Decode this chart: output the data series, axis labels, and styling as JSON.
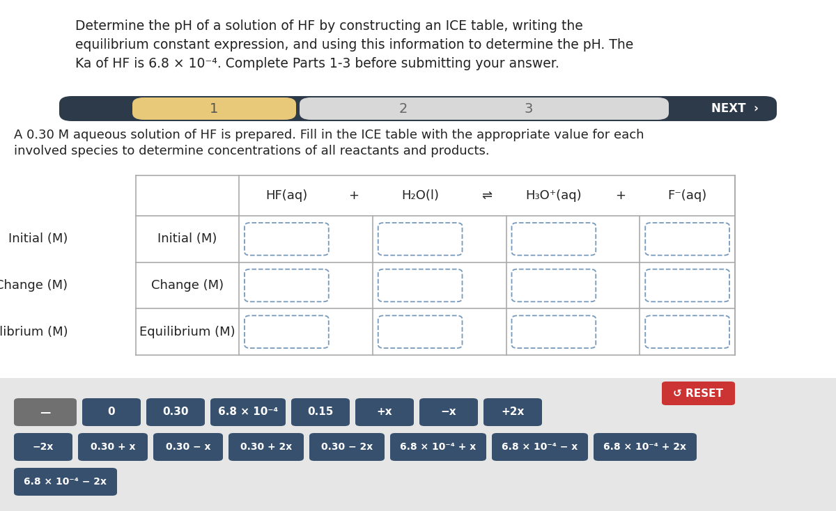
{
  "bg_color": "#f0f0f0",
  "white": "#ffffff",
  "dark_navy": "#2d3a4a",
  "medium_navy": "#37506e",
  "gold": "#e8c97a",
  "light_gray_tab": "#d0d0d0",
  "red_reset": "#cc3333",
  "gray_button": "#707070",
  "title_text_line1": "Determine the pH of a solution of HF by constructing an ICE table, writing the",
  "title_text_line2": "equilibrium constant expression, and using this information to determine the pH. The",
  "title_text_line3": "Ka of HF is 6.8 × 10⁻⁴. Complete Parts 1-3 before submitting your answer.",
  "description_line1": "A 0.30 M aqueous solution of HF is prepared. Fill in the ICE table with the appropriate value for each",
  "description_line2": "involved species to determine concentrations of all reactants and products.",
  "row_labels": [
    "Initial (M)",
    "Change (M)",
    "Equilibrium (M)"
  ],
  "col_headers": [
    "HF(aq)",
    "+",
    "H₂O(l)",
    "⇌",
    "H₃O⁺(aq)",
    "+",
    "F⁻(aq)"
  ],
  "buttons_row1_labels": [
    "—",
    "0",
    "0.30",
    "6.8 × 10⁻⁴",
    "0.15",
    "+x",
    "−x",
    "+2x"
  ],
  "buttons_row1_colors": [
    "#707070",
    "#37506e",
    "#37506e",
    "#37506e",
    "#37506e",
    "#37506e",
    "#37506e",
    "#37506e"
  ],
  "buttons_row2_labels": [
    "−2x",
    "0.30 + x",
    "0.30 − x",
    "0.30 + 2x",
    "0.30 − 2x",
    "6.8 × 10⁻⁴ + x",
    "6.8 × 10⁻⁴ − x",
    "6.8 × 10⁻⁴ + 2x"
  ],
  "buttons_row3_labels": [
    "6.8 × 10⁻⁴ − 2x"
  ]
}
